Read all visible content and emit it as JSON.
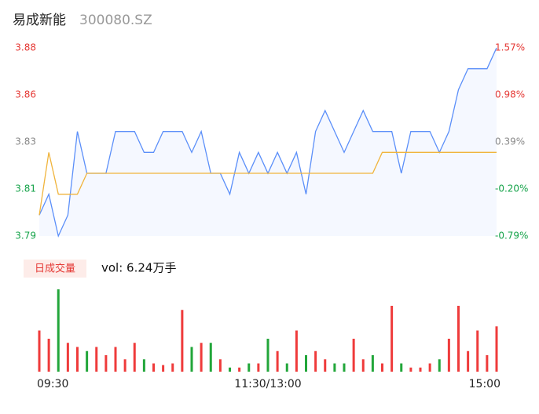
{
  "header": {
    "name": "易成新能",
    "code": "300080.SZ"
  },
  "chart_data": [
    {
      "type": "line",
      "x": [
        0,
        5,
        10,
        15,
        20,
        25,
        30,
        35,
        40,
        45,
        50,
        55,
        60,
        65,
        70,
        75,
        80,
        85,
        90,
        95,
        100,
        105,
        110,
        115,
        120,
        125,
        130,
        135,
        140,
        145,
        150,
        155,
        160,
        165,
        170,
        175,
        180,
        185,
        190,
        195,
        200,
        205,
        210,
        215,
        220,
        225,
        230,
        235,
        240
      ],
      "series": [
        {
          "color": "#5b8ff9",
          "values": [
            3.8,
            3.81,
            3.79,
            3.8,
            3.84,
            3.82,
            3.82,
            3.82,
            3.84,
            3.84,
            3.84,
            3.83,
            3.83,
            3.84,
            3.84,
            3.84,
            3.83,
            3.84,
            3.82,
            3.82,
            3.81,
            3.83,
            3.82,
            3.83,
            3.82,
            3.83,
            3.82,
            3.83,
            3.81,
            3.84,
            3.85,
            3.84,
            3.83,
            3.84,
            3.85,
            3.84,
            3.84,
            3.84,
            3.82,
            3.84,
            3.84,
            3.84,
            3.83,
            3.84,
            3.86,
            3.87,
            3.87,
            3.87,
            3.88
          ]
        },
        {
          "color": "#f0b43c",
          "values": [
            3.8,
            3.83,
            3.81,
            3.81,
            3.81,
            3.82,
            3.82,
            3.82,
            3.82,
            3.82,
            3.82,
            3.82,
            3.82,
            3.82,
            3.82,
            3.82,
            3.82,
            3.82,
            3.82,
            3.82,
            3.82,
            3.82,
            3.82,
            3.82,
            3.82,
            3.82,
            3.82,
            3.82,
            3.82,
            3.82,
            3.82,
            3.82,
            3.82,
            3.82,
            3.82,
            3.82,
            3.83,
            3.83,
            3.83,
            3.83,
            3.83,
            3.83,
            3.83,
            3.83,
            3.83,
            3.83,
            3.83,
            3.83,
            3.83
          ]
        }
      ],
      "xlim": [
        0,
        240
      ],
      "ylim": [
        3.79,
        3.88
      ],
      "yticks": [
        3.79,
        {
          "value": 3.8125,
          "label": "3.81"
        },
        {
          "value": 3.835,
          "label": "3.83"
        },
        {
          "value": 3.8575,
          "label": "3.86"
        },
        3.88
      ],
      "y2lim": [
        -0.79,
        1.57
      ],
      "y2ticks": [
        {
          "value": -0.79,
          "label": "-0.79%"
        },
        {
          "value": -0.2,
          "label": "-0.20%"
        },
        {
          "value": 0.39,
          "label": "0.39%"
        },
        {
          "value": 0.98,
          "label": "0.98%"
        },
        {
          "value": 1.57,
          "label": "1.57%"
        }
      ]
    },
    {
      "type": "bar",
      "legend_label": "日成交量",
      "annotation": "vol: 6.24万手",
      "x": [
        0,
        5,
        10,
        15,
        20,
        25,
        30,
        35,
        40,
        45,
        50,
        55,
        60,
        65,
        70,
        75,
        80,
        85,
        90,
        95,
        100,
        105,
        110,
        115,
        120,
        125,
        130,
        135,
        140,
        145,
        150,
        155,
        160,
        165,
        170,
        175,
        180,
        185,
        190,
        195,
        200,
        205,
        210,
        215,
        220,
        225,
        230,
        235,
        240
      ],
      "values": [
        50,
        40,
        100,
        35,
        30,
        25,
        30,
        20,
        30,
        15,
        35,
        15,
        10,
        8,
        10,
        75,
        30,
        35,
        35,
        15,
        5,
        5,
        10,
        10,
        40,
        25,
        10,
        50,
        20,
        25,
        15,
        10,
        10,
        40,
        15,
        20,
        10,
        80,
        10,
        5,
        5,
        10,
        15,
        40,
        80,
        25,
        50,
        20,
        55
      ],
      "colors": [
        "#ef3b3b",
        "#22a63a"
      ],
      "xlim": [
        0,
        240
      ],
      "xticks": [
        {
          "value": 0,
          "label": "09:30"
        },
        {
          "value": 120,
          "label": "11:30/13:00"
        },
        {
          "value": 240,
          "label": "15:00"
        }
      ]
    }
  ]
}
